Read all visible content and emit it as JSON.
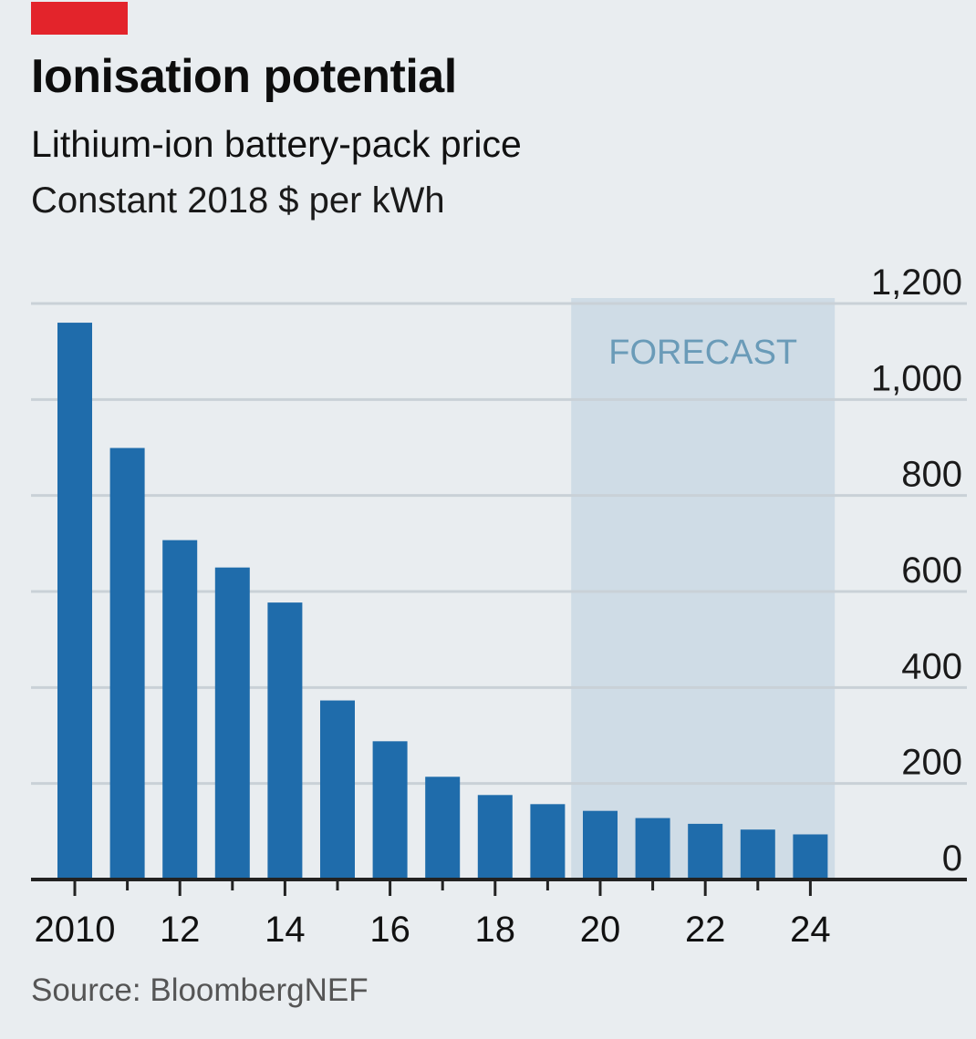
{
  "header": {
    "title": "Ionisation potential",
    "subtitle": "Lithium-ion battery-pack price",
    "unit": "Constant 2018 $ per kWh"
  },
  "footer": {
    "source": "Source: BloombergNEF"
  },
  "colors": {
    "bar": "#1f6cab",
    "forecast_band": "#cfdce6",
    "forecast_label": "#6a9bb8",
    "brand_red": "#e3242b",
    "background": "#e9edf0"
  },
  "chart_data": {
    "type": "bar",
    "title": "Ionisation potential",
    "subtitle": "Lithium-ion battery-pack price",
    "ylabel": "Constant 2018 $ per kWh",
    "xlabel": "",
    "categories": [
      "2010",
      "2011",
      "2012",
      "2013",
      "2014",
      "2015",
      "2016",
      "2017",
      "2018",
      "2019",
      "2020",
      "2021",
      "2022",
      "2023",
      "2024"
    ],
    "x_tick_labels": [
      "2010",
      "",
      "12",
      "",
      "14",
      "",
      "16",
      "",
      "18",
      "",
      "20",
      "",
      "22",
      "",
      "24"
    ],
    "values": [
      1160,
      899,
      707,
      650,
      577,
      373,
      288,
      214,
      176,
      157,
      143,
      128,
      116,
      104,
      94
    ],
    "y_ticks": [
      0,
      200,
      400,
      600,
      800,
      1000,
      1200
    ],
    "y_tick_labels": [
      "0",
      "200",
      "400",
      "600",
      "800",
      "1,000",
      "1,200"
    ],
    "ylim": [
      0,
      1200
    ],
    "forecast": {
      "label": "FORECAST",
      "from_year": "2020",
      "to_year": "2024"
    },
    "grid": true,
    "y_axis_side": "right"
  }
}
